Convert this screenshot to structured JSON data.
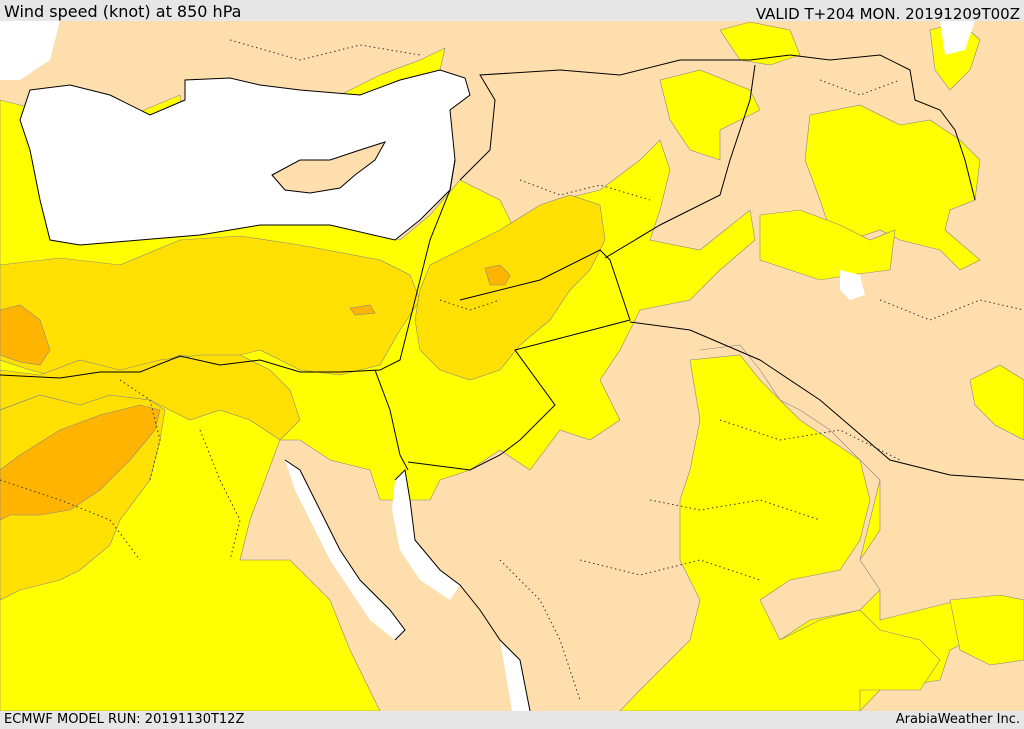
{
  "header": {
    "title": "Wind speed (knot) at 850 hPa",
    "valid_time": "VALID T+204 MON. 20191209T00Z"
  },
  "footer": {
    "model_run": "ECMWF MODEL RUN: 20191130T12Z",
    "credit": "ArabiaWeather Inc."
  },
  "map": {
    "colors": {
      "sea": "#ffffff",
      "calm_wind": "#ffdead",
      "light_wind": "#ffff00",
      "moderate_wind": "#ffe000",
      "strong_wind": "#ffb400",
      "very_strong_wind": "#f5a000",
      "coastline": "#000000",
      "border": "#000000"
    }
  }
}
